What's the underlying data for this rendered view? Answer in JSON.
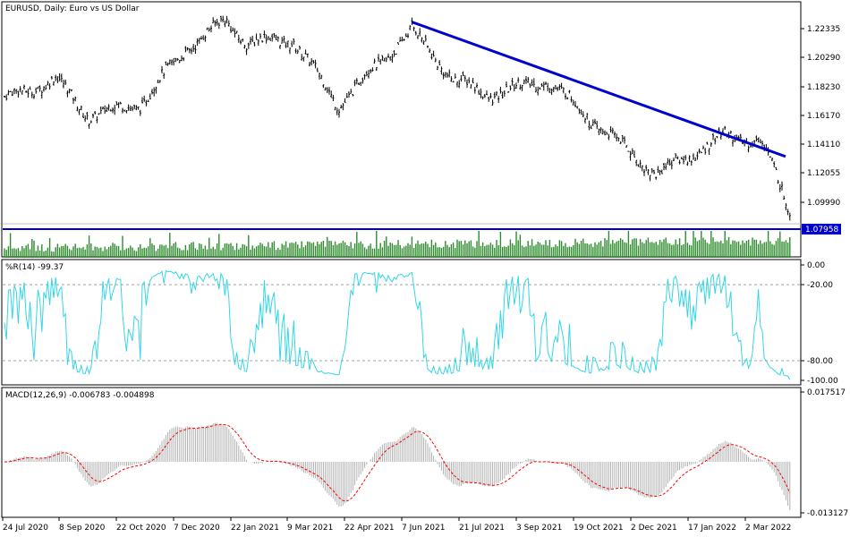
{
  "main": {
    "header": "EURUSD, Daily:  Euro vs US Dollar",
    "price_labels": [
      "1.22335",
      "1.20290",
      "1.18230",
      "1.16170",
      "1.14110",
      "1.12055",
      "1.09990"
    ],
    "current_price": "1.07958"
  },
  "indicators": {
    "wpr_header": "%R(14) -99.37",
    "wpr_levels": [
      "0.00",
      "-20.00",
      "-80.00",
      "-100.00"
    ],
    "macd_header": "MACD(12,26,9) -0.006783 -0.004898",
    "macd_levels": [
      "0.017517",
      "-0.013127"
    ]
  },
  "time_axis": {
    "labels": [
      "24 Jul 2020",
      "8 Sep 2020",
      "22 Oct 2020",
      "7 Dec 2020",
      "22 Jan 2021",
      "9 Mar 2021",
      "22 Apr 2021",
      "7 Jun 2021",
      "21 Jul 2021",
      "3 Sep 2021",
      "19 Oct 2021",
      "2 Dec 2021",
      "17 Jan 2022",
      "2 Mar 2022"
    ]
  },
  "colors": {
    "trendline": "#0000cc",
    "support_line": "#0000cc",
    "volume": "#2e8b2e",
    "wpr_line": "#33d6e6",
    "macd_histogram": "#b0b0b0",
    "macd_signal": "#ff0000",
    "bars": "#000000",
    "price_tag_bg": "#0000cc"
  },
  "chart_data": [
    {
      "type": "ohlc",
      "symbol": "EURUSD",
      "timeframe": "Daily",
      "x_range": [
        "2020-07-24",
        "2022-03-10"
      ],
      "y_range": [
        1.07958,
        1.235
      ],
      "series_trend": [
        {
          "date": "2020-07-24",
          "value": 1.175
        },
        {
          "date": "2020-09-01",
          "value": 1.19
        },
        {
          "date": "2020-09-25",
          "value": 1.163
        },
        {
          "date": "2020-11-04",
          "value": 1.172
        },
        {
          "date": "2020-12-07",
          "value": 1.212
        },
        {
          "date": "2021-01-06",
          "value": 1.233
        },
        {
          "date": "2021-01-22",
          "value": 1.217
        },
        {
          "date": "2021-02-25",
          "value": 1.219
        },
        {
          "date": "2021-03-31",
          "value": 1.171
        },
        {
          "date": "2021-05-25",
          "value": 1.226
        },
        {
          "date": "2021-06-25",
          "value": 1.19
        },
        {
          "date": "2021-07-21",
          "value": 1.178
        },
        {
          "date": "2021-09-03",
          "value": 1.189
        },
        {
          "date": "2021-10-12",
          "value": 1.155
        },
        {
          "date": "2021-11-24",
          "value": 1.12
        },
        {
          "date": "2022-01-13",
          "value": 1.148
        },
        {
          "date": "2022-02-10",
          "value": 1.145
        },
        {
          "date": "2022-03-07",
          "value": 1.084
        },
        {
          "date": "2022-03-10",
          "value": 1.106
        }
      ],
      "trendline": {
        "from": {
          "date": "2021-05-25",
          "value": 1.232
        },
        "to": {
          "date": "2022-02-28",
          "value": 1.133
        }
      },
      "support_level": 1.07958
    },
    {
      "type": "line",
      "name": "%R(14)",
      "y_range": [
        -100,
        0
      ],
      "levels": [
        -20,
        -80
      ],
      "last_value": -99.37
    },
    {
      "type": "histogram+line",
      "name": "MACD(12,26,9)",
      "y_range": [
        -0.013127,
        0.017517
      ],
      "macd_last": -0.006783,
      "signal_last": -0.004898
    }
  ]
}
